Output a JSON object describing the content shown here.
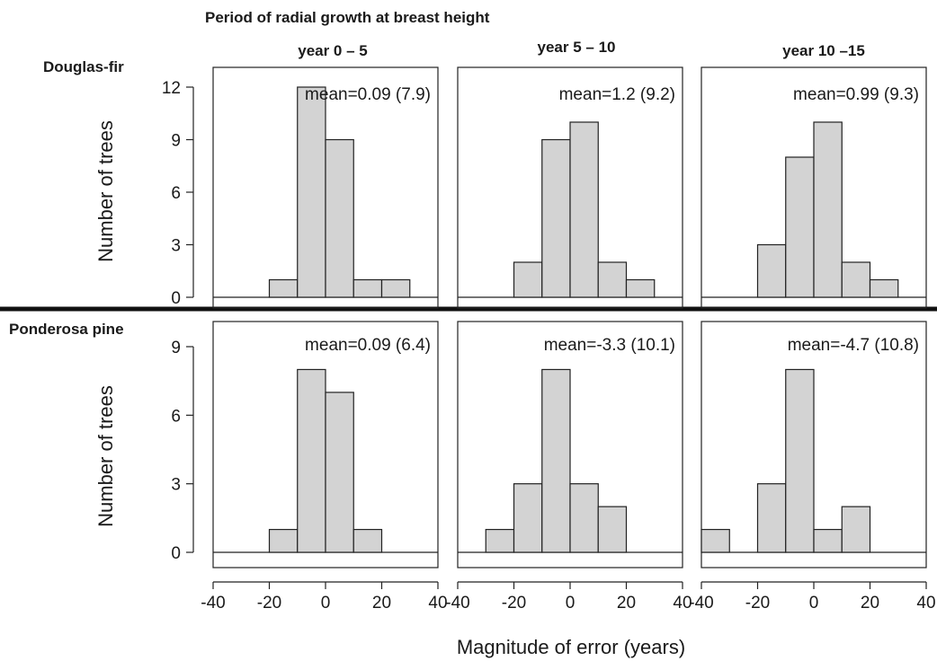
{
  "header": {
    "title": "Period of radial growth at breast height",
    "columns": [
      "year 0 – 5",
      "year 5 – 10",
      "year 10 –15"
    ]
  },
  "species": [
    "Douglas-fir",
    "Ponderosa pine"
  ],
  "ylabel": "Number of trees",
  "xlabel": "Magnitude of error (years)",
  "x_ticks": [
    -40,
    -20,
    0,
    20,
    40
  ],
  "colors": {
    "bar_fill": "#d3d3d3",
    "stroke": "#222222",
    "divider": "#111111"
  },
  "chart_data": [
    {
      "type": "bar",
      "row": "Douglas-fir",
      "column": "year 0 – 5",
      "bin_edges": [
        -40,
        -30,
        -20,
        -10,
        0,
        10,
        20,
        30,
        40
      ],
      "counts": [
        0,
        0,
        1,
        12,
        9,
        1,
        1,
        0
      ],
      "annotation": "mean=0.09 (7.9)",
      "xlim": [
        -40,
        40
      ],
      "ylim": [
        0,
        12
      ],
      "yticks": [
        0,
        3,
        6,
        9,
        12
      ]
    },
    {
      "type": "bar",
      "row": "Douglas-fir",
      "column": "year 5 – 10",
      "bin_edges": [
        -40,
        -30,
        -20,
        -10,
        0,
        10,
        20,
        30,
        40
      ],
      "counts": [
        0,
        0,
        2,
        9,
        10,
        2,
        1,
        0
      ],
      "annotation": "mean=1.2 (9.2)",
      "xlim": [
        -40,
        40
      ],
      "ylim": [
        0,
        12
      ],
      "yticks": [
        0,
        3,
        6,
        9,
        12
      ]
    },
    {
      "type": "bar",
      "row": "Douglas-fir",
      "column": "year 10 –15",
      "bin_edges": [
        -40,
        -30,
        -20,
        -10,
        0,
        10,
        20,
        30,
        40
      ],
      "counts": [
        0,
        0,
        3,
        8,
        10,
        2,
        1,
        0
      ],
      "annotation": "mean=0.99 (9.3)",
      "xlim": [
        -40,
        40
      ],
      "ylim": [
        0,
        12
      ],
      "yticks": [
        0,
        3,
        6,
        9,
        12
      ]
    },
    {
      "type": "bar",
      "row": "Ponderosa pine",
      "column": "year 0 – 5",
      "bin_edges": [
        -40,
        -30,
        -20,
        -10,
        0,
        10,
        20,
        30,
        40
      ],
      "counts": [
        0,
        0,
        1,
        8,
        7,
        1,
        0,
        0
      ],
      "annotation": "mean=0.09 (6.4)",
      "xlim": [
        -40,
        40
      ],
      "ylim": [
        0,
        9
      ],
      "yticks": [
        0,
        3,
        6,
        9
      ]
    },
    {
      "type": "bar",
      "row": "Ponderosa pine",
      "column": "year 5 – 10",
      "bin_edges": [
        -40,
        -30,
        -20,
        -10,
        0,
        10,
        20,
        30,
        40
      ],
      "counts": [
        0,
        1,
        3,
        8,
        3,
        2,
        0,
        0
      ],
      "annotation": "mean=-3.3 (10.1)",
      "xlim": [
        -40,
        40
      ],
      "ylim": [
        0,
        9
      ],
      "yticks": [
        0,
        3,
        6,
        9
      ]
    },
    {
      "type": "bar",
      "row": "Ponderosa pine",
      "column": "year 10 –15",
      "bin_edges": [
        -40,
        -30,
        -20,
        -10,
        0,
        10,
        20,
        30,
        40
      ],
      "counts": [
        1,
        0,
        3,
        8,
        1,
        2,
        0,
        0
      ],
      "annotation": "mean=-4.7 (10.8)",
      "xlim": [
        -40,
        40
      ],
      "ylim": [
        0,
        9
      ],
      "yticks": [
        0,
        3,
        6,
        9
      ]
    }
  ]
}
